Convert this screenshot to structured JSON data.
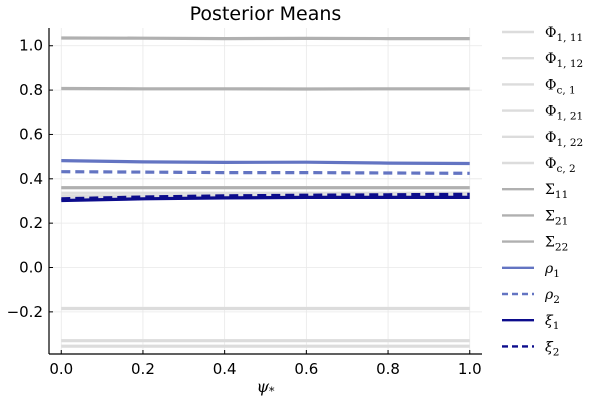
{
  "chart_data": {
    "type": "line",
    "title": "Posterior Means",
    "xlabel": "ψ",
    "xlabel_sub": "*",
    "ylabel": "",
    "xlim": [
      -0.03,
      1.03
    ],
    "ylim": [
      -0.39,
      1.08
    ],
    "x_ticks": [
      0.0,
      0.2,
      0.4,
      0.6,
      0.8,
      1.0
    ],
    "x_tick_labels": [
      "0.0",
      "0.2",
      "0.4",
      "0.6",
      "0.8",
      "1.0"
    ],
    "y_ticks": [
      -0.2,
      0.0,
      0.2,
      0.4,
      0.6,
      0.8,
      1.0
    ],
    "y_tick_labels": [
      "−0.2",
      "0.0",
      "0.2",
      "0.4",
      "0.6",
      "0.8",
      "1.0"
    ],
    "grid": true,
    "legend_position": "outside-right",
    "x": [
      0.0,
      0.2,
      0.4,
      0.6,
      0.8,
      1.0
    ],
    "series": [
      {
        "name": "Φ",
        "sub": "1, 11",
        "values": [
          0.335,
          0.335,
          0.335,
          0.335,
          0.335,
          0.335
        ],
        "color": "#dcdcdc",
        "dash": false
      },
      {
        "name": "Φ",
        "sub": "1, 12",
        "values": [
          -0.185,
          -0.185,
          -0.185,
          -0.185,
          -0.185,
          -0.185
        ],
        "color": "#dcdcdc",
        "dash": false
      },
      {
        "name": "Φ",
        "sub": "c, 1",
        "values": [
          0.36,
          0.36,
          0.36,
          0.36,
          0.36,
          0.36
        ],
        "color": "#dcdcdc",
        "dash": false
      },
      {
        "name": "Φ",
        "sub": "1, 21",
        "values": [
          -0.33,
          -0.33,
          -0.33,
          -0.33,
          -0.33,
          -0.33
        ],
        "color": "#dcdcdc",
        "dash": false
      },
      {
        "name": "Φ",
        "sub": "1, 22",
        "values": [
          -0.355,
          -0.355,
          -0.355,
          -0.355,
          -0.355,
          -0.355
        ],
        "color": "#dcdcdc",
        "dash": false
      },
      {
        "name": "Φ",
        "sub": "c, 2",
        "values": [
          0.32,
          0.32,
          0.32,
          0.32,
          0.32,
          0.32
        ],
        "color": "#dcdcdc",
        "dash": false
      },
      {
        "name": "Σ",
        "sub": "11",
        "values": [
          1.035,
          1.034,
          1.032,
          1.033,
          1.032,
          1.032
        ],
        "color": "#b0b0b0",
        "dash": false
      },
      {
        "name": "Σ",
        "sub": "21",
        "values": [
          0.807,
          0.806,
          0.806,
          0.805,
          0.806,
          0.806
        ],
        "color": "#b0b0b0",
        "dash": false
      },
      {
        "name": "Σ",
        "sub": "22",
        "values": [
          0.36,
          0.36,
          0.36,
          0.36,
          0.36,
          0.36
        ],
        "color": "#b0b0b0",
        "dash": false
      },
      {
        "name": "ρ",
        "sub": "1",
        "values": [
          0.482,
          0.476,
          0.474,
          0.475,
          0.471,
          0.469
        ],
        "color": "#6374c2",
        "dash": false
      },
      {
        "name": "ρ",
        "sub": "2",
        "values": [
          0.432,
          0.43,
          0.428,
          0.428,
          0.426,
          0.425
        ],
        "color": "#6374c2",
        "dash": true
      },
      {
        "name": "ξ",
        "sub": "1",
        "values": [
          0.302,
          0.31,
          0.314,
          0.316,
          0.316,
          0.316
        ],
        "color": "#0c0c8c",
        "dash": false
      },
      {
        "name": "ξ",
        "sub": "2",
        "values": [
          0.31,
          0.318,
          0.323,
          0.326,
          0.328,
          0.33
        ],
        "color": "#0c0c8c",
        "dash": true
      }
    ]
  }
}
